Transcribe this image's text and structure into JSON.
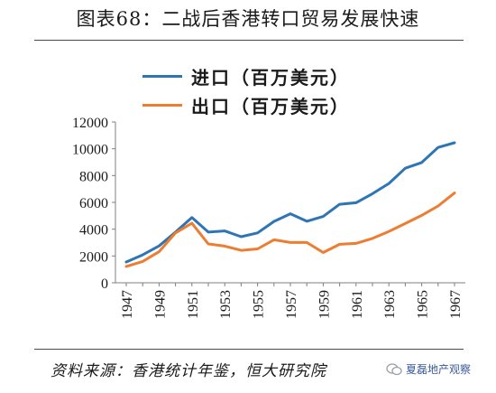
{
  "title": "图表68：二战后香港转口贸易发展快速",
  "source": "资料来源：香港统计年鉴，恒大研究院",
  "watermark": "夏磊地产观察",
  "chart_data": {
    "type": "line",
    "title": "图表68：二战后香港转口贸易发展快速",
    "xlabel": "",
    "ylabel": "",
    "x": [
      1947,
      1948,
      1949,
      1950,
      1951,
      1952,
      1953,
      1954,
      1955,
      1956,
      1957,
      1958,
      1959,
      1960,
      1961,
      1962,
      1963,
      1964,
      1965,
      1966,
      1967
    ],
    "x_tick_labels": [
      "1947",
      "1949",
      "1951",
      "1953",
      "1955",
      "1957",
      "1959",
      "1961",
      "1963",
      "1965",
      "1967"
    ],
    "ylim": [
      0,
      12000
    ],
    "y_ticks": [
      0,
      2000,
      4000,
      6000,
      8000,
      10000,
      12000
    ],
    "y_tick_labels": [
      "0",
      "2000",
      "4000",
      "6000",
      "8000",
      "10000",
      "12000"
    ],
    "grid": false,
    "legend": "top-left",
    "series": [
      {
        "name": "进口（百万美元）",
        "color": "#2e75b6",
        "values": [
          1550,
          2080,
          2750,
          3780,
          4870,
          3780,
          3870,
          3440,
          3720,
          4580,
          5150,
          4590,
          4950,
          5860,
          5970,
          6650,
          7410,
          8550,
          8970,
          10100,
          10450
        ]
      },
      {
        "name": "出口（百万美元）",
        "color": "#ed7d31",
        "values": [
          1220,
          1590,
          2320,
          3720,
          4440,
          2900,
          2740,
          2420,
          2530,
          3210,
          3010,
          3010,
          2260,
          2870,
          2940,
          3310,
          3830,
          4420,
          5030,
          5730,
          6700
        ]
      }
    ]
  }
}
